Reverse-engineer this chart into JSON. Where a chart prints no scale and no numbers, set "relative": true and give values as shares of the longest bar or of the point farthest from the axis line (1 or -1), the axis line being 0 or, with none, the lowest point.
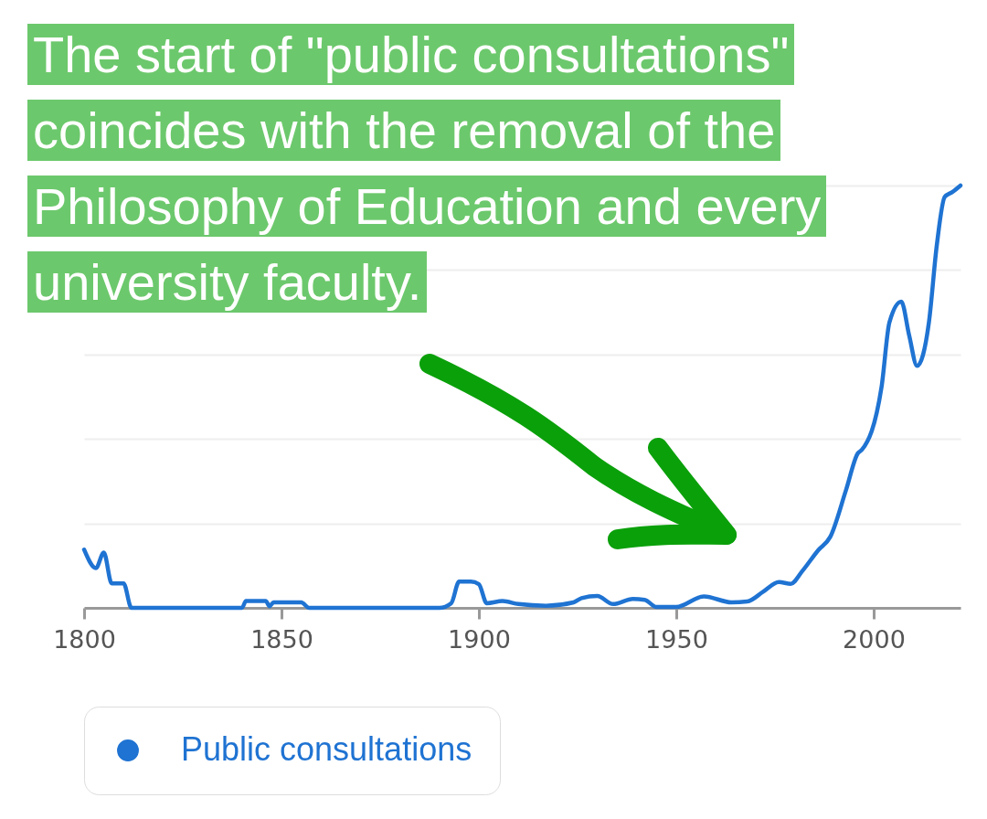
{
  "chart_data": {
    "type": "line",
    "relative": true,
    "annotations": [
      "The start of \"public consultations\" coincides with the removal of the Philosophy of Education and every university faculty."
    ],
    "xlim": [
      1800,
      2022
    ],
    "xticks": [
      1800,
      1850,
      1900,
      1950,
      2000
    ],
    "grid": "y",
    "legend": "bottom",
    "marker": "none",
    "line_style": "solid",
    "series": [
      {
        "name": "Public consultations",
        "color": "#1f73d2",
        "x": [
          1800,
          1803,
          1805,
          1807,
          1810,
          1812,
          1840,
          1841,
          1846,
          1847,
          1848,
          1855,
          1857,
          1890,
          1893,
          1895,
          1898,
          1900,
          1902,
          1906,
          1910,
          1917,
          1924,
          1926,
          1930,
          1934,
          1939,
          1942,
          1945,
          1950,
          1957,
          1964,
          1968,
          1972,
          1976,
          1979,
          1982,
          1986,
          1989,
          1993,
          1996,
          1997,
          2002,
          2004,
          2007,
          2009,
          2011,
          2014,
          2016,
          2018,
          2020,
          2022
        ],
        "values": [
          0.138,
          0.094,
          0.131,
          0.058,
          0.058,
          0,
          0,
          0.016,
          0.016,
          0.004,
          0.013,
          0.013,
          0,
          0,
          0.011,
          0.062,
          0.062,
          0.056,
          0.011,
          0.016,
          0.009,
          0.005,
          0.013,
          0.023,
          0.028,
          0.009,
          0.021,
          0.019,
          0.002,
          0.002,
          0.027,
          0.013,
          0.015,
          0.038,
          0.061,
          0.057,
          0.088,
          0.137,
          0.168,
          0.279,
          0.366,
          0.374,
          0.523,
          0.676,
          0.725,
          0.645,
          0.573,
          0.676,
          0.859,
          0.973,
          0.985,
          1
        ]
      }
    ]
  }
}
